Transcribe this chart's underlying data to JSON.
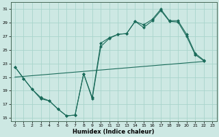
{
  "xlabel": "Humidex (Indice chaleur)",
  "bg_color": "#cde8e3",
  "grid_color": "#a8d4cc",
  "line_color": "#1a6b5a",
  "xlim": [
    -0.5,
    23.5
  ],
  "ylim": [
    14.5,
    32
  ],
  "yticks": [
    15,
    17,
    19,
    21,
    23,
    25,
    27,
    29,
    31
  ],
  "xticks": [
    0,
    1,
    2,
    3,
    4,
    5,
    6,
    7,
    8,
    9,
    10,
    11,
    12,
    13,
    14,
    15,
    16,
    17,
    18,
    19,
    20,
    21,
    22,
    23
  ],
  "series1_x": [
    0,
    1,
    2,
    3,
    4,
    5,
    6,
    7,
    8,
    9,
    10,
    11,
    12,
    13,
    14,
    15,
    16,
    17,
    18,
    19,
    20,
    21,
    22
  ],
  "series1_y": [
    22.5,
    20.8,
    19.2,
    18.0,
    17.5,
    16.3,
    15.3,
    15.4,
    21.5,
    18.0,
    26.0,
    26.8,
    27.3,
    27.4,
    29.2,
    28.7,
    29.5,
    31.0,
    29.3,
    29.3,
    27.3,
    24.5,
    23.5
  ],
  "series2_x": [
    0,
    1,
    2,
    3,
    4,
    5,
    6,
    7,
    8,
    9,
    10,
    11,
    12,
    13,
    14,
    15,
    16,
    17,
    18,
    19,
    20,
    21,
    22
  ],
  "series2_y": [
    22.5,
    20.8,
    19.2,
    17.8,
    17.5,
    16.3,
    15.3,
    15.4,
    21.5,
    17.8,
    25.5,
    26.7,
    27.3,
    27.4,
    29.2,
    28.3,
    29.3,
    30.8,
    29.2,
    29.1,
    27.0,
    24.3,
    23.4
  ],
  "series3_x": [
    0,
    22
  ],
  "series3_y": [
    21.0,
    23.3
  ]
}
